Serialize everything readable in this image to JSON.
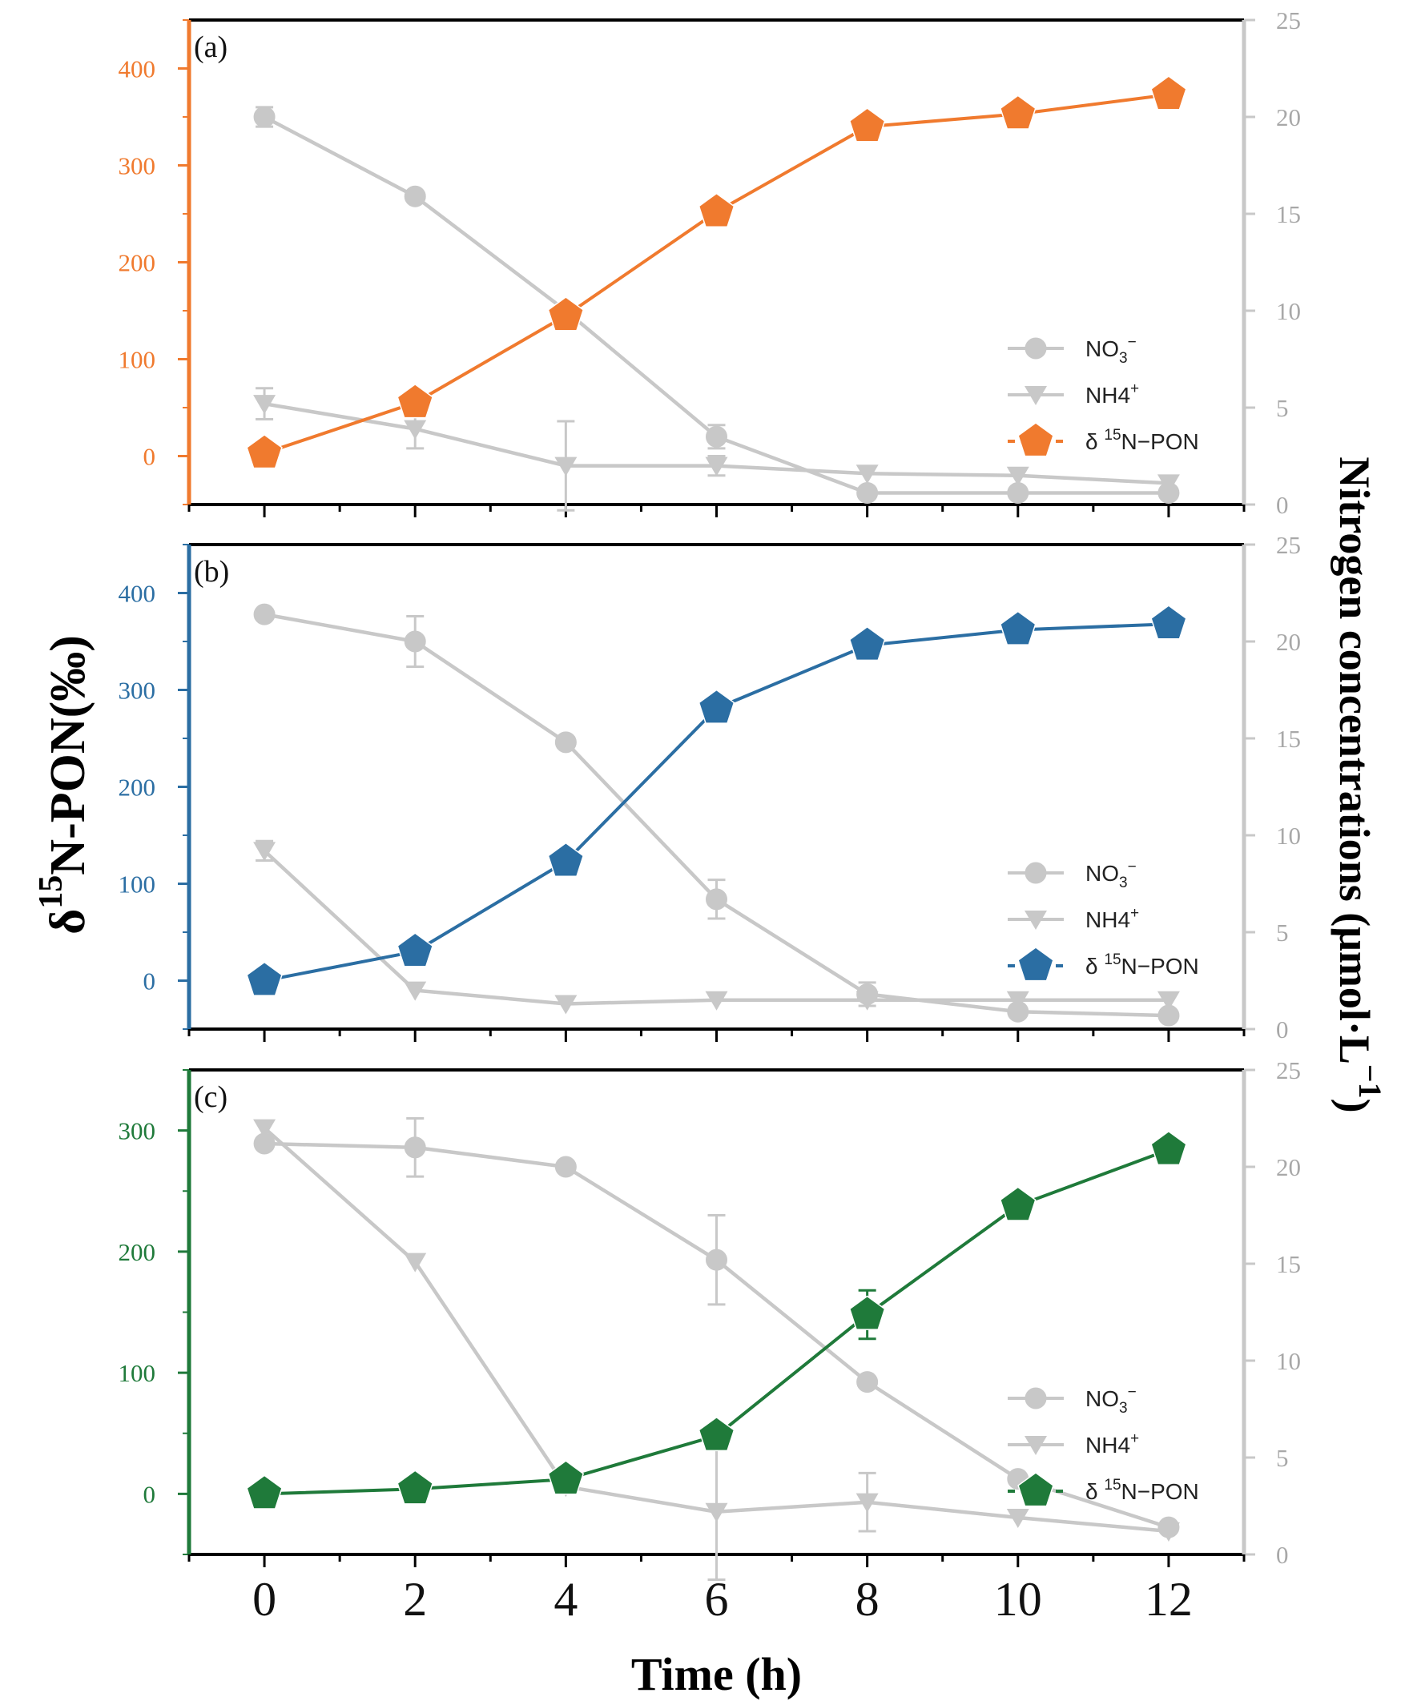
{
  "chart_data": {
    "type": "line",
    "shared_x": {
      "label": "Time (h)",
      "ticks": [
        0,
        2,
        4,
        6,
        8,
        10,
        12
      ],
      "tick_labels": [
        "0",
        "2",
        "4",
        "6",
        "8",
        "10",
        "12"
      ],
      "range": [
        -1,
        13
      ]
    },
    "left_axis_title": {
      "main": "δ",
      "sup": "15",
      "rest": "N-PON(‰)"
    },
    "right_axis_title": {
      "main": "Nitrogen concentrations (μmol·L",
      "sup": "−1",
      "end": ")"
    },
    "gray_color": "#c8c8c8",
    "panels": [
      {
        "label": "(a)",
        "accent": "#f07a2e",
        "left_range": [
          -50,
          450
        ],
        "left_ticks": [
          0,
          100,
          200,
          300,
          400
        ],
        "left_tick_labels": [
          "0",
          "100",
          "200",
          "300",
          "400"
        ],
        "right_range": [
          0,
          25
        ],
        "right_ticks": [
          0,
          5,
          10,
          15,
          20,
          25
        ],
        "right_tick_labels": [
          "0",
          "5",
          "10",
          "15",
          "20",
          "25"
        ],
        "legend": [
          {
            "base": "NO",
            "sub": "3",
            "sup": "−"
          },
          {
            "base": "NH4",
            "sub": "",
            "sup": "+"
          },
          {
            "base": "δ ",
            "sub": "",
            "sup": "15",
            "post": "N−PON"
          }
        ],
        "series": [
          {
            "name": "NO3-",
            "axis": "right",
            "marker": "circle",
            "x": [
              0,
              2,
              4,
              6,
              8,
              10,
              12
            ],
            "y": [
              20.0,
              15.9,
              10.0,
              3.5,
              0.6,
              0.6,
              0.6
            ],
            "err": [
              0.5,
              0.0,
              0.0,
              0.6,
              0.0,
              0.0,
              0.0
            ]
          },
          {
            "name": "NH4+",
            "axis": "right",
            "marker": "triangle",
            "x": [
              0,
              2,
              4,
              6,
              8,
              10,
              12
            ],
            "y": [
              5.2,
              3.9,
              2.0,
              2.0,
              1.6,
              1.5,
              1.1
            ],
            "err": [
              0.8,
              1.0,
              2.3,
              0.5,
              0.0,
              0.0,
              0.0
            ]
          },
          {
            "name": "δ15N-PON",
            "axis": "left",
            "marker": "pentagon",
            "x": [
              0,
              2,
              4,
              6,
              8,
              10,
              12
            ],
            "y": [
              3,
              55,
              145,
              252,
              340,
              353,
              373
            ],
            "err": [
              0,
              0,
              0,
              0,
              0,
              0,
              0
            ]
          }
        ]
      },
      {
        "label": "(b)",
        "accent": "#2b6ea3",
        "left_range": [
          -50,
          450
        ],
        "left_ticks": [
          0,
          100,
          200,
          300,
          400
        ],
        "left_tick_labels": [
          "0",
          "100",
          "200",
          "300",
          "400"
        ],
        "right_range": [
          0,
          25
        ],
        "right_ticks": [
          0,
          5,
          10,
          15,
          20,
          25
        ],
        "right_tick_labels": [
          "0",
          "5",
          "10",
          "15",
          "20",
          "25"
        ],
        "legend": [
          {
            "base": "NO",
            "sub": "3",
            "sup": "−"
          },
          {
            "base": "NH4",
            "sub": "",
            "sup": "+"
          },
          {
            "base": "δ ",
            "sub": "",
            "sup": "15",
            "post": "N−PON"
          }
        ],
        "series": [
          {
            "name": "NO3-",
            "axis": "right",
            "marker": "circle",
            "x": [
              0,
              2,
              4,
              6,
              8,
              10,
              12
            ],
            "y": [
              21.4,
              20.0,
              14.8,
              6.7,
              1.8,
              0.9,
              0.7
            ],
            "err": [
              0.0,
              1.3,
              0.0,
              1.0,
              0.6,
              0.0,
              0.0
            ]
          },
          {
            "name": "NH4+",
            "axis": "right",
            "marker": "triangle",
            "x": [
              0,
              2,
              4,
              6,
              8,
              10,
              12
            ],
            "y": [
              9.2,
              2.0,
              1.3,
              1.5,
              1.5,
              1.5,
              1.5
            ],
            "err": [
              0.5,
              0.0,
              0.0,
              0.0,
              0.0,
              0.0,
              0.0
            ]
          },
          {
            "name": "δ15N-PON",
            "axis": "left",
            "marker": "pentagon",
            "x": [
              0,
              2,
              4,
              6,
              8,
              10,
              12
            ],
            "y": [
              0,
              30,
              123,
              281,
              346,
              362,
              368
            ],
            "err": [
              0,
              0,
              0,
              0,
              0,
              0,
              0
            ]
          }
        ]
      },
      {
        "label": "(c)",
        "accent": "#1f7a3a",
        "left_range": [
          -50,
          350
        ],
        "left_ticks": [
          0,
          100,
          200,
          300
        ],
        "left_tick_labels": [
          "0",
          "100",
          "200",
          "300"
        ],
        "right_range": [
          0,
          25
        ],
        "right_ticks": [
          0,
          5,
          10,
          15,
          20,
          25
        ],
        "right_tick_labels": [
          "0",
          "5",
          "10",
          "15",
          "20",
          "25"
        ],
        "legend": [
          {
            "base": "NO",
            "sub": "3",
            "sup": "−"
          },
          {
            "base": "NH4",
            "sub": "",
            "sup": "+"
          },
          {
            "base": "δ ",
            "sub": "",
            "sup": "15",
            "post": "N−PON"
          }
        ],
        "series": [
          {
            "name": "NO3-",
            "axis": "right",
            "marker": "circle",
            "x": [
              0,
              2,
              4,
              6,
              8,
              10,
              12
            ],
            "y": [
              21.2,
              21.0,
              20.0,
              15.2,
              8.9,
              3.9,
              1.4
            ],
            "err": [
              0.0,
              1.5,
              0.0,
              2.3,
              0.0,
              0.0,
              0.0
            ]
          },
          {
            "name": "NH4+",
            "axis": "right",
            "marker": "triangle",
            "x": [
              0,
              2,
              4,
              6,
              8,
              10,
              12
            ],
            "y": [
              22.0,
              15.1,
              3.5,
              2.2,
              2.7,
              1.9,
              1.2
            ],
            "err": [
              0.0,
              0.0,
              0.0,
              3.5,
              1.5,
              0.0,
              0.0
            ]
          },
          {
            "name": "δ15N-PON",
            "axis": "left",
            "marker": "pentagon",
            "x": [
              0,
              2,
              4,
              6,
              8,
              10,
              12
            ],
            "y": [
              0,
              4,
              12,
              48,
              148,
              238,
              284
            ],
            "err": [
              0,
              0,
              0,
              0,
              20,
              0,
              0
            ]
          }
        ]
      }
    ]
  }
}
